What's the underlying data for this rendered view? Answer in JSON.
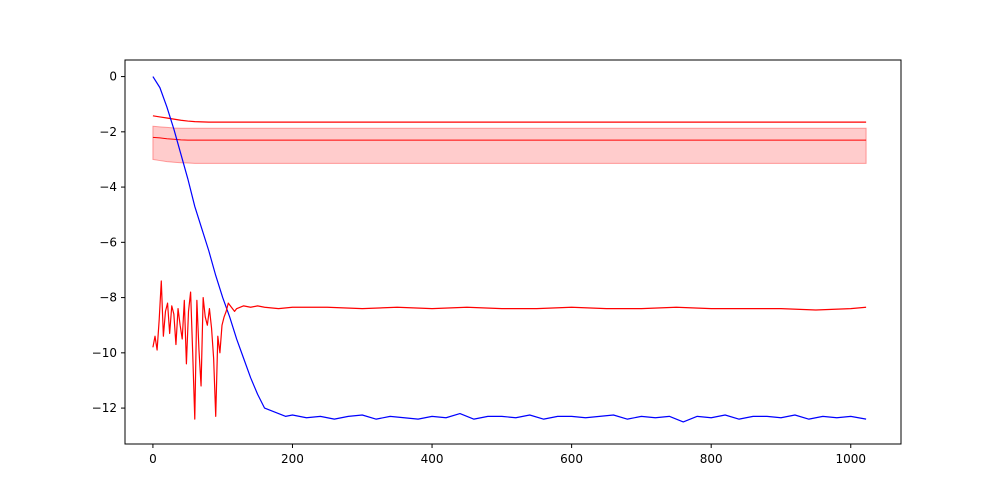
{
  "chart_data": {
    "type": "line",
    "title": "",
    "xlabel": "",
    "ylabel": "",
    "xlim": [
      -40,
      1072
    ],
    "ylim": [
      -13.3,
      0.6
    ],
    "x_ticks": [
      0,
      200,
      400,
      600,
      800,
      1000
    ],
    "y_ticks": [
      0,
      -2,
      -4,
      -6,
      -8,
      -10,
      -12
    ],
    "x_tick_labels": [
      "0",
      "200",
      "400",
      "600",
      "800",
      "1000"
    ],
    "y_tick_labels": [
      "0",
      "−2",
      "−4",
      "−6",
      "−8",
      "−10",
      "−12"
    ],
    "grid": false,
    "legend": null,
    "band": {
      "color": "#ff0000",
      "fill_alpha": 0.2,
      "x": [
        0,
        10,
        20,
        30,
        40,
        50,
        60,
        80,
        100,
        150,
        200,
        1022
      ],
      "mean": [
        -2.2,
        -2.22,
        -2.25,
        -2.27,
        -2.29,
        -2.3,
        -2.3,
        -2.3,
        -2.3,
        -2.3,
        -2.3,
        -2.3
      ],
      "upper": [
        -1.8,
        -1.82,
        -1.84,
        -1.86,
        -1.87,
        -1.87,
        -1.87,
        -1.87,
        -1.87,
        -1.87,
        -1.87,
        -1.87
      ],
      "lower": [
        -3.0,
        -3.04,
        -3.08,
        -3.1,
        -3.12,
        -3.13,
        -3.14,
        -3.14,
        -3.14,
        -3.14,
        -3.14,
        -3.14
      ]
    },
    "series": [
      {
        "color": "#ff0000",
        "x": [
          0,
          10,
          20,
          30,
          40,
          50,
          60,
          70,
          80,
          100,
          150,
          200,
          1022
        ],
        "values": [
          -1.42,
          -1.46,
          -1.5,
          -1.54,
          -1.58,
          -1.61,
          -1.63,
          -1.64,
          -1.65,
          -1.65,
          -1.65,
          -1.65,
          -1.65
        ]
      },
      {
        "color": "#0000ff",
        "x": [
          0,
          10,
          20,
          30,
          40,
          50,
          60,
          70,
          80,
          90,
          100,
          110,
          120,
          130,
          140,
          150,
          160,
          170,
          180,
          190,
          200,
          220,
          240,
          260,
          280,
          300,
          320,
          340,
          360,
          380,
          400,
          420,
          440,
          460,
          480,
          500,
          520,
          540,
          560,
          580,
          600,
          620,
          640,
          660,
          680,
          700,
          720,
          740,
          760,
          780,
          800,
          820,
          840,
          860,
          880,
          900,
          920,
          940,
          960,
          980,
          1000,
          1022
        ],
        "values": [
          0.0,
          -0.4,
          -1.1,
          -1.9,
          -2.8,
          -3.7,
          -4.7,
          -5.5,
          -6.3,
          -7.2,
          -8.0,
          -8.7,
          -9.5,
          -10.2,
          -10.9,
          -11.5,
          -12.0,
          -12.1,
          -12.2,
          -12.3,
          -12.25,
          -12.35,
          -12.3,
          -12.4,
          -12.3,
          -12.25,
          -12.4,
          -12.3,
          -12.35,
          -12.4,
          -12.3,
          -12.35,
          -12.2,
          -12.4,
          -12.3,
          -12.3,
          -12.35,
          -12.25,
          -12.4,
          -12.3,
          -12.3,
          -12.35,
          -12.3,
          -12.25,
          -12.4,
          -12.3,
          -12.35,
          -12.3,
          -12.5,
          -12.3,
          -12.35,
          -12.25,
          -12.4,
          -12.3,
          -12.3,
          -12.35,
          -12.25,
          -12.4,
          -12.3,
          -12.35,
          -12.3,
          -12.4
        ]
      },
      {
        "color": "#ff0000",
        "x": [
          0,
          3,
          6,
          9,
          12,
          15,
          18,
          21,
          24,
          27,
          30,
          33,
          36,
          39,
          42,
          45,
          48,
          51,
          54,
          57,
          60,
          63,
          66,
          69,
          72,
          75,
          78,
          81,
          84,
          87,
          90,
          93,
          96,
          99,
          102,
          105,
          108,
          111,
          114,
          117,
          120,
          130,
          140,
          150,
          160,
          180,
          200,
          250,
          300,
          350,
          400,
          450,
          500,
          550,
          600,
          650,
          700,
          750,
          800,
          850,
          900,
          950,
          1000,
          1022
        ],
        "values": [
          -9.8,
          -9.4,
          -9.9,
          -8.8,
          -7.4,
          -9.4,
          -8.5,
          -8.2,
          -9.3,
          -8.3,
          -8.6,
          -9.7,
          -8.4,
          -9.0,
          -9.5,
          -8.1,
          -10.4,
          -8.5,
          -7.8,
          -10.0,
          -12.4,
          -8.1,
          -9.9,
          -11.2,
          -8.0,
          -8.7,
          -9.0,
          -8.4,
          -9.1,
          -10.2,
          -12.3,
          -9.4,
          -10.0,
          -9.0,
          -8.7,
          -8.5,
          -8.2,
          -8.3,
          -8.4,
          -8.5,
          -8.4,
          -8.3,
          -8.35,
          -8.3,
          -8.35,
          -8.4,
          -8.35,
          -8.35,
          -8.4,
          -8.35,
          -8.4,
          -8.35,
          -8.4,
          -8.4,
          -8.35,
          -8.4,
          -8.4,
          -8.35,
          -8.4,
          -8.4,
          -8.4,
          -8.45,
          -8.4,
          -8.35
        ]
      }
    ]
  }
}
